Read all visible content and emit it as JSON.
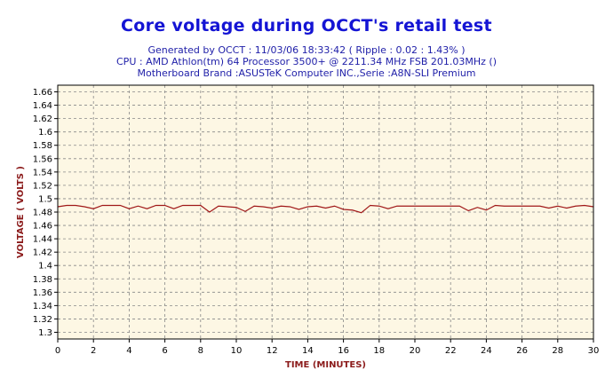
{
  "chart_data": {
    "type": "line",
    "title": "Core voltage during OCCT's retail test",
    "subtitle_lines": [
      "Generated by OCCT : 11/03/06 18:33:42 ( Ripple : 0.02 : 1.43% )",
      "CPU : AMD Athlon(tm) 64 Processor 3500+ @ 2211.34 MHz FSB 201.03MHz ()",
      "Motherboard Brand :ASUSTeK Computer INC.,Serie :A8N-SLI Premium"
    ],
    "xlabel": "TIME (MINUTES)",
    "ylabel": "VOLTAGE ( VOLTS )",
    "xlim": [
      0,
      30
    ],
    "ylim": [
      1.29,
      1.67
    ],
    "xticks": [
      "0",
      "2",
      "4",
      "6",
      "8",
      "10",
      "12",
      "14",
      "16",
      "18",
      "20",
      "22",
      "24",
      "26",
      "28",
      "30"
    ],
    "xtick_values": [
      0,
      2,
      4,
      6,
      8,
      10,
      12,
      14,
      16,
      18,
      20,
      22,
      24,
      26,
      28,
      30
    ],
    "yticks": [
      "1.3",
      "1.32",
      "1.34",
      "1.36",
      "1.38",
      "1.4",
      "1.42",
      "1.44",
      "1.46",
      "1.48",
      "1.5",
      "1.52",
      "1.54",
      "1.56",
      "1.58",
      "1.6",
      "1.62",
      "1.64",
      "1.66"
    ],
    "ytick_values": [
      1.3,
      1.32,
      1.34,
      1.36,
      1.38,
      1.4,
      1.42,
      1.44,
      1.46,
      1.48,
      1.5,
      1.52,
      1.54,
      1.56,
      1.58,
      1.6,
      1.62,
      1.64,
      1.66
    ],
    "grid": true,
    "colors": {
      "line": "#a01818",
      "plot_bg": "#fdf7e4",
      "grid": "#888888",
      "title": "#1414d4",
      "subtitle": "#1e1ea8",
      "axis_label": "#8b1a1a"
    },
    "series": [
      {
        "x": [
          0,
          0.5,
          1,
          1.5,
          2,
          2.5,
          3,
          3.5,
          4,
          4.5,
          5,
          5.5,
          6,
          6.5,
          7,
          7.5,
          8,
          8.5,
          9,
          9.5,
          10,
          10.5,
          11,
          11.5,
          12,
          12.5,
          13,
          13.5,
          14,
          14.5,
          15,
          15.5,
          16,
          16.5,
          17,
          17.5,
          18,
          18.5,
          19,
          19.5,
          20,
          20.5,
          21,
          21.5,
          22,
          22.5,
          23,
          23.5,
          24,
          24.5,
          25,
          25.5,
          26,
          26.5,
          27,
          27.5,
          28,
          28.5,
          29,
          29.5,
          30
        ],
        "y": [
          1.488,
          1.49,
          1.49,
          1.488,
          1.485,
          1.49,
          1.49,
          1.49,
          1.485,
          1.489,
          1.485,
          1.49,
          1.49,
          1.485,
          1.49,
          1.49,
          1.49,
          1.48,
          1.489,
          1.488,
          1.487,
          1.481,
          1.489,
          1.488,
          1.486,
          1.489,
          1.488,
          1.484,
          1.488,
          1.489,
          1.486,
          1.489,
          1.484,
          1.483,
          1.479,
          1.49,
          1.489,
          1.485,
          1.489,
          1.489,
          1.489,
          1.489,
          1.489,
          1.489,
          1.489,
          1.489,
          1.482,
          1.487,
          1.483,
          1.49,
          1.489,
          1.489,
          1.489,
          1.489,
          1.489,
          1.486,
          1.489,
          1.486,
          1.489,
          1.49,
          1.488
        ]
      }
    ]
  }
}
